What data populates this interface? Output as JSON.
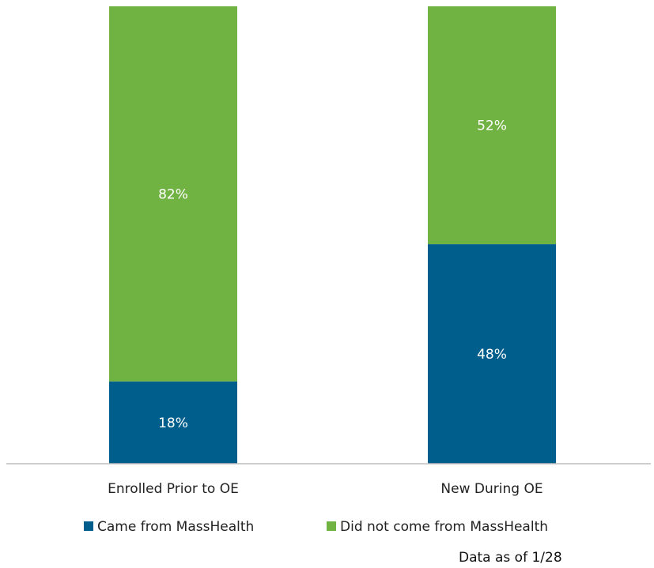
{
  "chart_data": {
    "type": "bar",
    "stacked": true,
    "normalized": true,
    "categories": [
      "Enrolled Prior to OE",
      "New During OE"
    ],
    "series": [
      {
        "name": "Came from MassHealth",
        "values": [
          18,
          48
        ],
        "labels": [
          "18%",
          "48%"
        ],
        "color": "#005E8C"
      },
      {
        "name": "Did not come from MassHealth",
        "values": [
          82,
          52
        ],
        "labels": [
          "82%",
          "52%"
        ],
        "color": "#71B343"
      }
    ],
    "ylim": [
      0,
      100
    ],
    "unit": "%",
    "grid": false,
    "legend_position": "bottom"
  },
  "note": "Data as of 1/28"
}
